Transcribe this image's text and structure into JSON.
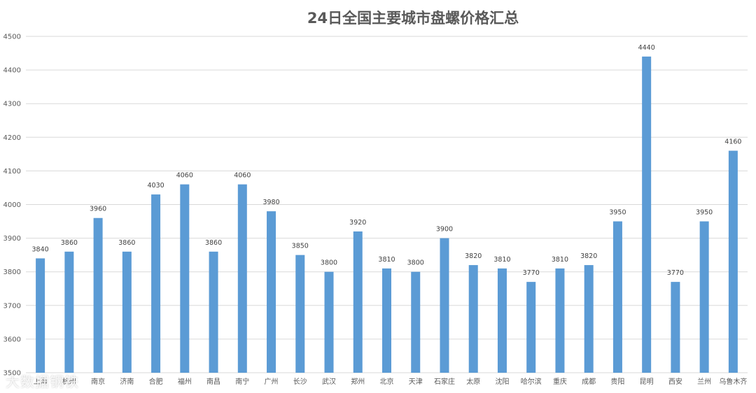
{
  "chart_data": {
    "type": "bar",
    "title": "24日全国主要城市盘螺价格汇总",
    "xlabel": "",
    "ylabel": "",
    "ylim": [
      3500,
      4500
    ],
    "yticks": [
      3500,
      3600,
      3700,
      3800,
      3900,
      4000,
      4100,
      4200,
      4300,
      4400,
      4500
    ],
    "grid": true,
    "legend": "none",
    "bar_color": "#5b9bd5",
    "categories": [
      "上海",
      "杭州",
      "南京",
      "济南",
      "合肥",
      "福州",
      "南昌",
      "南宁",
      "广州",
      "长沙",
      "武汉",
      "郑州",
      "北京",
      "天津",
      "石家庄",
      "太原",
      "沈阳",
      "哈尔滨",
      "重庆",
      "成都",
      "贵阳",
      "昆明",
      "西安",
      "兰州",
      "乌鲁木齐"
    ],
    "values": [
      3840,
      3860,
      3960,
      3860,
      4030,
      4060,
      3860,
      4060,
      3980,
      3850,
      3800,
      3920,
      3810,
      3800,
      3900,
      3820,
      3810,
      3770,
      3810,
      3820,
      3950,
      4440,
      3770,
      3950,
      4160
    ]
  },
  "watermark": {
    "text": "大数据钢铁"
  }
}
